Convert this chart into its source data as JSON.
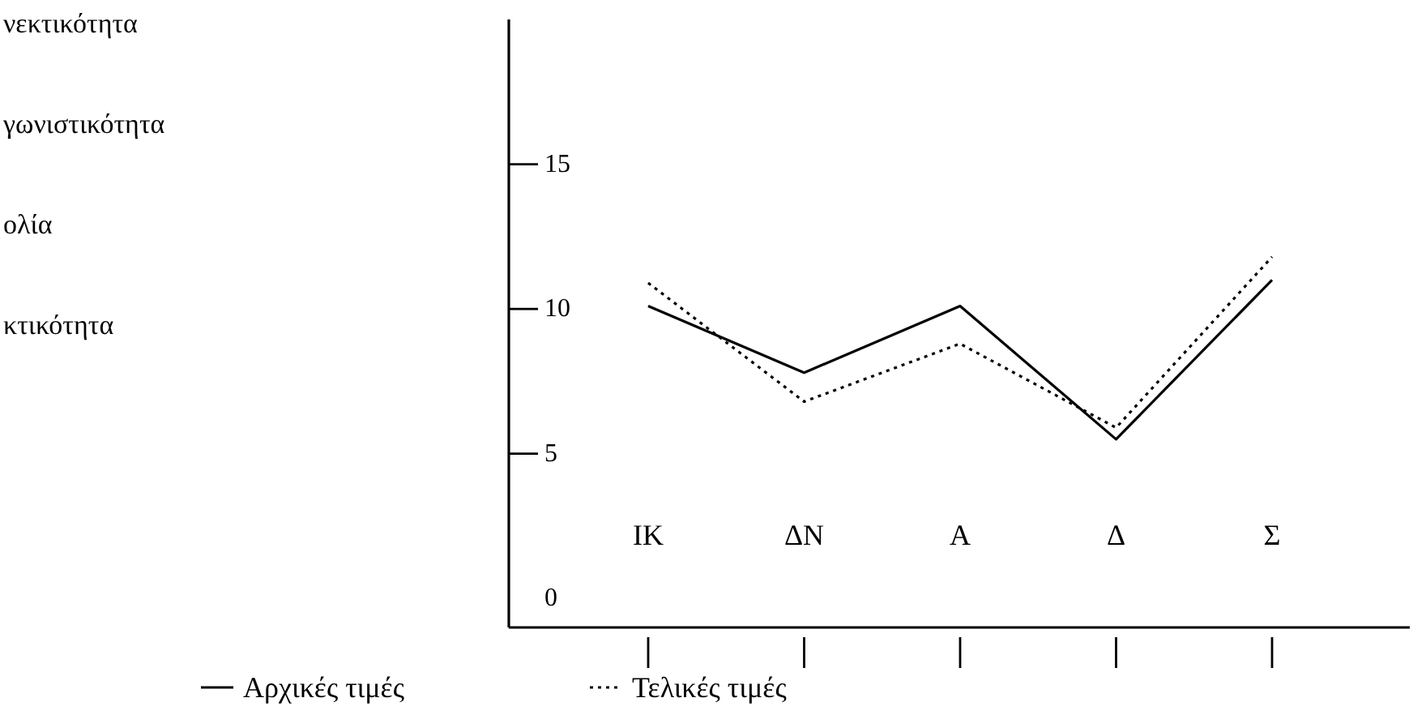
{
  "chart_data": {
    "type": "line",
    "categories": [
      "IK",
      "ΔΝ",
      "Α",
      "Δ",
      "Σ"
    ],
    "series": [
      {
        "name": "Αρχικές τιμές",
        "color": "#000000",
        "line_style": "solid",
        "values": [
          10.1,
          7.8,
          10.1,
          5.5,
          11.0
        ]
      },
      {
        "name": "Τελικές τιμές",
        "color": "#000000",
        "line_style": "dotted",
        "values": [
          10.9,
          6.8,
          8.8,
          5.9,
          11.8
        ]
      }
    ],
    "ylim": [
      -1,
      20
    ],
    "yticks": [
      0,
      5,
      10,
      15
    ],
    "legend": "bottom",
    "marker": "none",
    "annotations": [
      "νεκτικότητα",
      "γωνιστικότητα",
      "ολία",
      "κτικότητα"
    ]
  }
}
